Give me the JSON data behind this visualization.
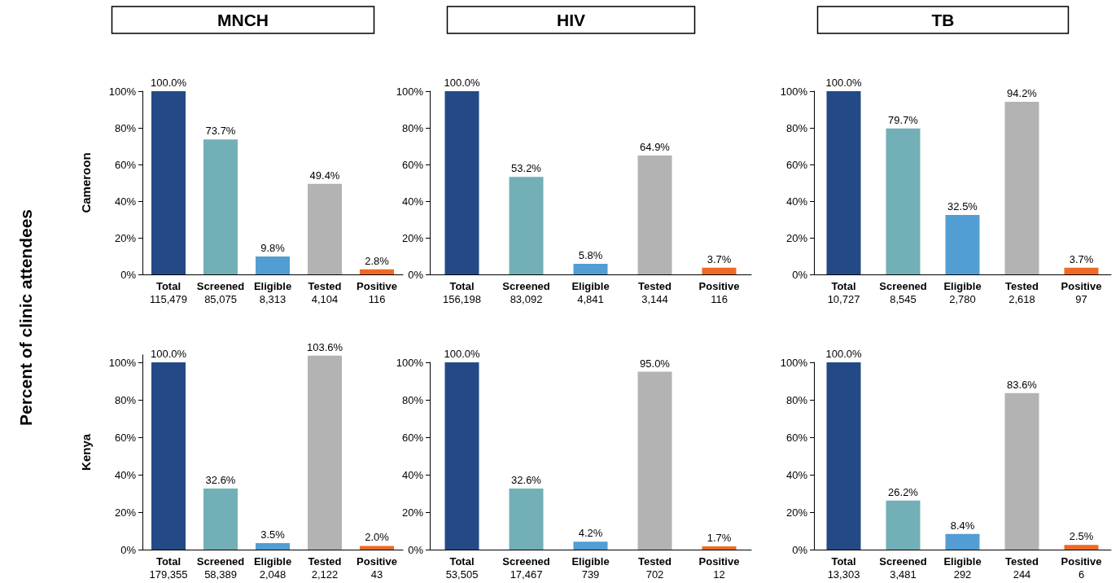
{
  "chart_data": [
    {
      "type": "bar",
      "title": "MNCH",
      "ylabel": "Cameroon",
      "annotations": [
        "Percent of clinic attendees"
      ],
      "categories": [
        "Total\n115,479",
        "Screened\n85,075",
        "Eligible\n8,313",
        "Tested\n4,104",
        "Positive\n116"
      ],
      "values": [
        100.0,
        73.7,
        9.8,
        49.4,
        2.8
      ],
      "value_labels": [
        "100.0%",
        "73.7%",
        "9.8%",
        "49.4%",
        "2.8%"
      ],
      "colors": [
        "#234a86",
        "#72afb6",
        "#529dd3",
        "#b3b3b3",
        "#ee6a24"
      ],
      "ylim": [
        0,
        100
      ],
      "yticks": [
        {
          "value": 0,
          "label": "0%"
        },
        {
          "value": 20,
          "label": "20%"
        },
        {
          "value": 40,
          "label": "40%"
        },
        {
          "value": 60,
          "label": "60%"
        },
        {
          "value": 80,
          "label": "80%"
        },
        {
          "value": 100,
          "label": "100%"
        }
      ],
      "grid": false
    },
    {
      "type": "bar",
      "title": "HIV",
      "categories": [
        "Total\n156,198",
        "Screened\n83,092",
        "Eligible\n4,841",
        "Tested\n3,144",
        "Positive\n116"
      ],
      "values": [
        100.0,
        53.2,
        5.8,
        64.9,
        3.7
      ],
      "value_labels": [
        "100.0%",
        "53.2%",
        "5.8%",
        "64.9%",
        "3.7%"
      ],
      "colors": [
        "#234a86",
        "#72afb6",
        "#529dd3",
        "#b3b3b3",
        "#ee6a24"
      ],
      "ylim": [
        0,
        100
      ],
      "yticks": [
        {
          "value": 0,
          "label": "0%"
        },
        {
          "value": 20,
          "label": "20%"
        },
        {
          "value": 40,
          "label": "40%"
        },
        {
          "value": 60,
          "label": "60%"
        },
        {
          "value": 80,
          "label": "80%"
        },
        {
          "value": 100,
          "label": "100%"
        }
      ],
      "grid": false
    },
    {
      "type": "bar",
      "title": "TB",
      "categories": [
        "Total\n10,727",
        "Screened\n8,545",
        "Eligible\n2,780",
        "Tested\n2,618",
        "Positive\n97"
      ],
      "values": [
        100.0,
        79.7,
        32.5,
        94.2,
        3.7
      ],
      "value_labels": [
        "100.0%",
        "79.7%",
        "32.5%",
        "94.2%",
        "3.7%"
      ],
      "colors": [
        "#234a86",
        "#72afb6",
        "#529dd3",
        "#b3b3b3",
        "#ee6a24"
      ],
      "ylim": [
        0,
        100
      ],
      "yticks": [
        {
          "value": 0,
          "label": "0%"
        },
        {
          "value": 20,
          "label": "20%"
        },
        {
          "value": 40,
          "label": "40%"
        },
        {
          "value": 60,
          "label": "60%"
        },
        {
          "value": 80,
          "label": "80%"
        },
        {
          "value": 100,
          "label": "100%"
        }
      ],
      "grid": false
    },
    {
      "type": "bar",
      "ylabel": "Kenya",
      "categories": [
        "Total\n179,355",
        "Screened\n58,389",
        "Eligible\n2,048",
        "Tested\n2,122",
        "Positive\n43"
      ],
      "values": [
        100.0,
        32.6,
        3.5,
        103.6,
        2.0
      ],
      "value_labels": [
        "100.0%",
        "32.6%",
        "3.5%",
        "103.6%",
        "2.0%"
      ],
      "colors": [
        "#234a86",
        "#72afb6",
        "#529dd3",
        "#b3b3b3",
        "#ee6a24"
      ],
      "ylim": [
        0,
        104
      ],
      "yticks": [
        {
          "value": 0,
          "label": "0%"
        },
        {
          "value": 20,
          "label": "20%"
        },
        {
          "value": 40,
          "label": "40%"
        },
        {
          "value": 60,
          "label": "60%"
        },
        {
          "value": 80,
          "label": "80%"
        },
        {
          "value": 100,
          "label": "100%"
        }
      ],
      "grid": false
    },
    {
      "type": "bar",
      "categories": [
        "Total\n53,505",
        "Screened\n17,467",
        "Eligible\n739",
        "Tested\n702",
        "Positive\n12"
      ],
      "values": [
        100.0,
        32.6,
        4.2,
        95.0,
        1.7
      ],
      "value_labels": [
        "100.0%",
        "32.6%",
        "4.2%",
        "95.0%",
        "1.7%"
      ],
      "colors": [
        "#234a86",
        "#72afb6",
        "#529dd3",
        "#b3b3b3",
        "#ee6a24"
      ],
      "ylim": [
        0,
        100
      ],
      "yticks": [
        {
          "value": 0,
          "label": "0%"
        },
        {
          "value": 20,
          "label": "20%"
        },
        {
          "value": 40,
          "label": "40%"
        },
        {
          "value": 60,
          "label": "60%"
        },
        {
          "value": 80,
          "label": "80%"
        },
        {
          "value": 100,
          "label": "100%"
        }
      ],
      "grid": false
    },
    {
      "type": "bar",
      "categories": [
        "Total\n13,303",
        "Screened\n3,481",
        "Eligible\n292",
        "Tested\n244",
        "Positive\n6"
      ],
      "values": [
        100.0,
        26.2,
        8.4,
        83.6,
        2.5
      ],
      "value_labels": [
        "100.0%",
        "26.2%",
        "8.4%",
        "83.6%",
        "2.5%"
      ],
      "colors": [
        "#234a86",
        "#72afb6",
        "#529dd3",
        "#b3b3b3",
        "#ee6a24"
      ],
      "ylim": [
        0,
        100
      ],
      "yticks": [
        {
          "value": 0,
          "label": "0%"
        },
        {
          "value": 20,
          "label": "20%"
        },
        {
          "value": 40,
          "label": "40%"
        },
        {
          "value": 60,
          "label": "60%"
        },
        {
          "value": 80,
          "label": "80%"
        },
        {
          "value": 100,
          "label": "100%"
        }
      ],
      "grid": false
    }
  ]
}
